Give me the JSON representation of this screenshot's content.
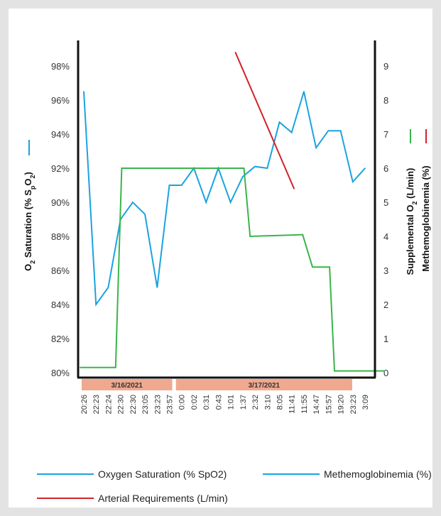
{
  "chart_data": {
    "type": "line",
    "left_axis": {
      "label_main": "O",
      "label_sub": "2",
      "label_rest": " Saturation (% S",
      "label_sub2": "p",
      "label_mid": "O",
      "label_sub3": "2",
      "label_end": ")",
      "ylim": [
        79,
        99
      ],
      "ticks": [
        "80%",
        "82%",
        "84%",
        "86%",
        "88%",
        "90%",
        "92%",
        "94%",
        "96%",
        "98%"
      ],
      "tick_values": [
        80,
        82,
        84,
        86,
        88,
        90,
        92,
        94,
        96,
        98
      ]
    },
    "right_axis": {
      "label1": "Supplemental O",
      "label1_sub": "2",
      "label1_end": " (L/min)",
      "label2": "Methemoglobinemia (%)",
      "ylim": [
        -0.5,
        9.5
      ],
      "ticks": [
        "0",
        "1",
        "2",
        "3",
        "4",
        "5",
        "6",
        "7",
        "8",
        "9"
      ],
      "tick_values": [
        0,
        1,
        2,
        3,
        4,
        5,
        6,
        7,
        8,
        9
      ]
    },
    "categories": [
      "20:26",
      "22:23",
      "22:24",
      "22:30",
      "22:30",
      "23:05",
      "23:23",
      "23:57",
      "0:00",
      "0:02",
      "0:31",
      "0:43",
      "1:01",
      "1:37",
      "2:32",
      "3:10",
      "8:05",
      "11:41",
      "11:55",
      "14:47",
      "15:57",
      "19:20",
      "23:23",
      "3:09"
    ],
    "date_bands": [
      {
        "label": "3/16/2021",
        "start": 0,
        "end": 7
      },
      {
        "label": "3/17/2021",
        "start": 8,
        "end": 23
      }
    ],
    "series": [
      {
        "name": "Oxygen Saturation (% SpO2)",
        "axis": "left",
        "color": "#1aa3e0",
        "values": [
          96.5,
          84,
          85,
          89,
          90,
          89.3,
          85,
          91,
          91,
          92,
          90,
          92,
          90,
          91.5,
          92.1,
          92,
          94.7,
          94.1,
          96.5,
          93.2,
          94.2,
          94.2,
          91.2,
          92
        ]
      },
      {
        "axis": "right",
        "color": "#39b54a",
        "x": [
          -0.3,
          2.6,
          3.1,
          9.6,
          10.2,
          11.1,
          13.1,
          13.6,
          17.9,
          18.7,
          20.1,
          20.5,
          24.6
        ],
        "values": [
          0.15,
          0.15,
          6.0,
          6.0,
          6.0,
          6.0,
          6.0,
          4.0,
          4.05,
          3.1,
          3.1,
          0.05,
          0.05
        ]
      },
      {
        "axis": "right",
        "color": "#d2232a",
        "x": [
          12.4,
          17.2
        ],
        "values": [
          9.4,
          5.4
        ]
      }
    ],
    "legend": [
      {
        "label": "Oxygen Saturation (% SpO2)",
        "color": "#1aa3e0"
      },
      {
        "label": "Methemoglobinemia (%)",
        "color": "#1aa3e0"
      },
      {
        "label": "Arterial Requirements (L/min)",
        "color": "#d2232a"
      }
    ],
    "right_label_marks": {
      "supplemental_color": "#39b54a",
      "methemo_color": "#d2232a"
    },
    "left_label_mark_color": "#1aa3e0",
    "band_color": "#f0a98f",
    "axis_color": "#111111"
  }
}
